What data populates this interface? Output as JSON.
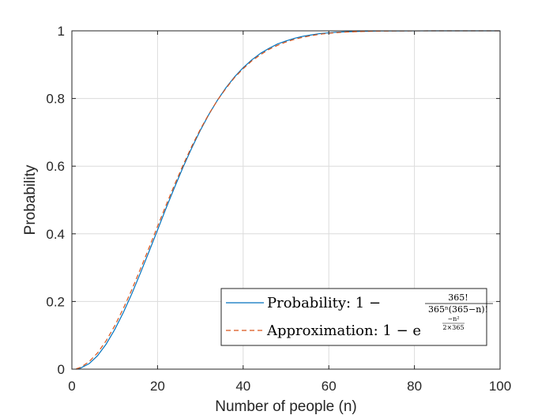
{
  "chart_data": {
    "type": "line",
    "xlabel": "Number of people (n)",
    "ylabel": "Probability",
    "xlim": [
      0,
      100
    ],
    "ylim": [
      0,
      1
    ],
    "xticks": [
      0,
      20,
      40,
      60,
      80,
      100
    ],
    "xtick_labels": [
      "0",
      "20",
      "40",
      "60",
      "80",
      "100"
    ],
    "yticks": [
      0,
      0.2,
      0.4,
      0.6,
      0.8,
      1
    ],
    "ytick_labels": [
      "0",
      "0.2",
      "0.4",
      "0.6",
      "0.8",
      "1"
    ],
    "grid": true,
    "legend_position": "bottom-right",
    "series": [
      {
        "name": "Probability: 1 − 365! / (365ⁿ(365−n)!)",
        "legend_prefix": "Probability:",
        "legend_formula": {
          "lead": "1 −",
          "numerator": "365!",
          "denominator": "365ⁿ(365−n)!"
        },
        "style": "solid",
        "color": "#0072BD",
        "x": [
          1,
          2,
          4,
          6,
          8,
          10,
          12,
          14,
          16,
          18,
          20,
          22,
          24,
          26,
          28,
          30,
          32,
          34,
          36,
          38,
          40,
          42,
          44,
          46,
          48,
          50,
          52,
          54,
          56,
          58,
          60,
          62,
          64,
          66,
          68,
          70,
          72,
          75,
          80,
          85,
          90,
          95,
          100
        ],
        "y": [
          0,
          0.003,
          0.016,
          0.04,
          0.074,
          0.117,
          0.167,
          0.223,
          0.284,
          0.347,
          0.411,
          0.476,
          0.538,
          0.598,
          0.654,
          0.706,
          0.753,
          0.795,
          0.832,
          0.864,
          0.891,
          0.914,
          0.933,
          0.948,
          0.961,
          0.97,
          0.978,
          0.984,
          0.988,
          0.992,
          0.994,
          0.996,
          0.997,
          0.998,
          0.9987,
          0.9992,
          0.9995,
          0.9997,
          0.99991,
          0.99998,
          0.999994,
          0.999999,
          1.0
        ]
      },
      {
        "name": "Approximation: 1 − e^(−n²/(2×365))",
        "legend_prefix": "Approximation:",
        "legend_formula": {
          "lead": "1 − e",
          "exp_numerator": "−n²",
          "exp_denominator": "2×365"
        },
        "style": "dashed",
        "color": "#D95319",
        "x": [
          1,
          2,
          4,
          6,
          8,
          10,
          12,
          14,
          16,
          18,
          20,
          22,
          24,
          26,
          28,
          30,
          32,
          34,
          36,
          38,
          40,
          42,
          44,
          46,
          48,
          50,
          52,
          54,
          56,
          58,
          60,
          62,
          64,
          66,
          68,
          70,
          72,
          75,
          80,
          85,
          90,
          95,
          100
        ],
        "y": [
          0.001,
          0.005,
          0.022,
          0.048,
          0.084,
          0.128,
          0.179,
          0.235,
          0.296,
          0.358,
          0.422,
          0.485,
          0.546,
          0.604,
          0.659,
          0.709,
          0.754,
          0.795,
          0.83,
          0.862,
          0.888,
          0.911,
          0.929,
          0.945,
          0.957,
          0.967,
          0.975,
          0.981,
          0.986,
          0.99,
          0.9928,
          0.9948,
          0.9963,
          0.9974,
          0.9982,
          0.9988,
          0.9992,
          0.9995,
          0.99985,
          0.99995,
          0.99999,
          0.999996,
          0.999999
        ]
      }
    ]
  }
}
